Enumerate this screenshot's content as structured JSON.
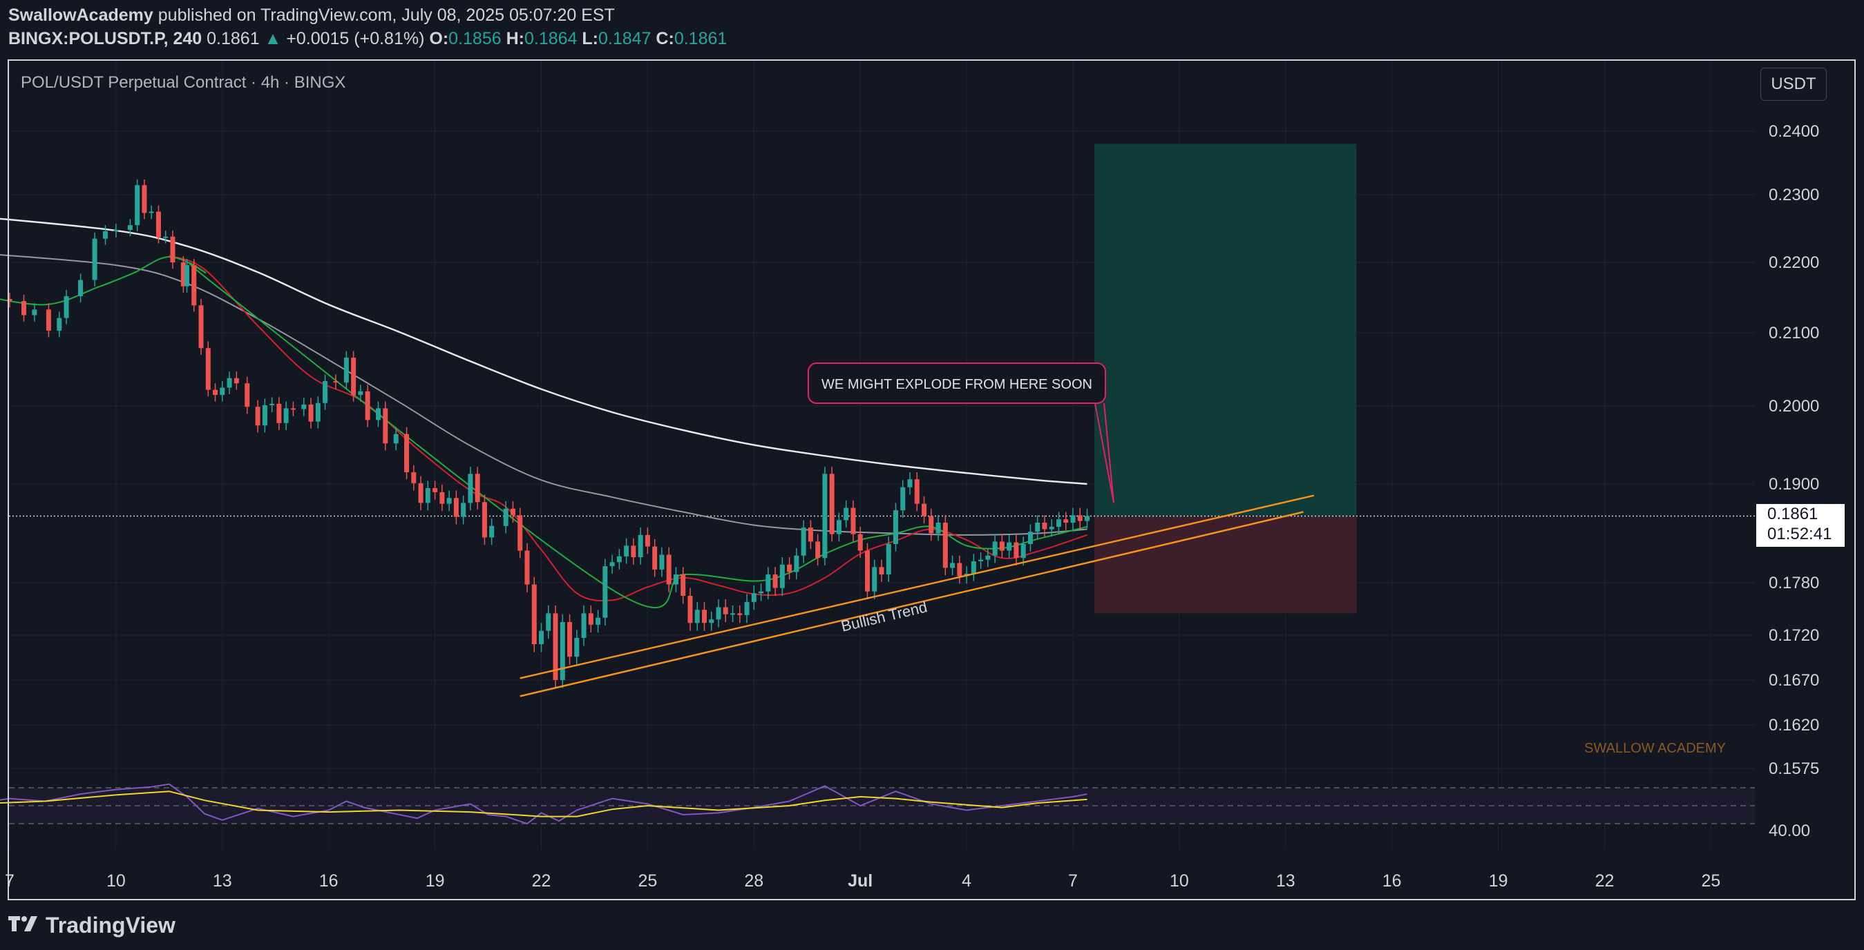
{
  "header": {
    "author": "SwallowAcademy",
    "published_text": "published on TradingView.com, July 08, 2025 05:07:20 EST",
    "symbol": "BINGX:POLUSDT.P, 240",
    "last": "0.1861",
    "change_arrow": "▲",
    "change": "+0.0015 (+0.81%)",
    "o_label": "O:",
    "o_value": "0.1856",
    "h_label": "H:",
    "h_value": "0.1864",
    "l_label": "L:",
    "l_value": "0.1847",
    "c_label": "C:",
    "c_value": "0.1861"
  },
  "chart_title": "POL/USDT Perpetual Contract · 4h · BINGX",
  "currency_button": "USDT",
  "price_tag": {
    "price": "0.1861",
    "countdown": "01:52:41"
  },
  "brand": "TradingView",
  "watermark": "SWALLOW ACADEMY",
  "colors": {
    "background": "#131722",
    "bull": "#26a69a",
    "bear": "#ef5350",
    "ma_white": "#e8e8e8",
    "ma_gray": "#9598a1",
    "ema_red": "#d3212c",
    "ema_green": "#1fae3c",
    "trend_orange": "#f7931a",
    "rsi": "#7e57c2",
    "rsi_ma": "#f2d62a",
    "annotation": "#e91e63"
  },
  "chart_data": {
    "type": "candlestick",
    "timeframe": "4h",
    "ylim": [
      0.1575,
      0.24
    ],
    "y_ticks": [
      "0.2400",
      "0.2300",
      "0.2200",
      "0.2100",
      "0.2000",
      "0.1900",
      "0.1780",
      "0.1720",
      "0.1670",
      "0.1620",
      "0.1575"
    ],
    "x_ticks": [
      "7",
      "10",
      "13",
      "16",
      "19",
      "22",
      "25",
      "28",
      "Jul",
      "4",
      "7",
      "10",
      "13",
      "16",
      "19",
      "22",
      "25"
    ],
    "x_start": "2025-06-07",
    "last_price": 0.1861,
    "close_path": [
      [
        6.0,
        0.2176
      ],
      [
        6.6,
        0.2148
      ],
      [
        7.0,
        0.2145
      ],
      [
        7.4,
        0.2125
      ],
      [
        7.7,
        0.2133
      ],
      [
        8.1,
        0.2103
      ],
      [
        8.4,
        0.2121
      ],
      [
        8.6,
        0.2152
      ],
      [
        9.0,
        0.2175
      ],
      [
        9.4,
        0.2235
      ],
      [
        9.7,
        0.2246
      ],
      [
        10.0,
        0.2248
      ],
      [
        10.4,
        0.2255
      ],
      [
        10.6,
        0.2315
      ],
      [
        10.8,
        0.2273
      ],
      [
        11.0,
        0.2275
      ],
      [
        11.2,
        0.2237
      ],
      [
        11.4,
        0.2238
      ],
      [
        11.6,
        0.22
      ],
      [
        11.9,
        0.2166
      ],
      [
        12.0,
        0.2196
      ],
      [
        12.2,
        0.2139
      ],
      [
        12.4,
        0.2079
      ],
      [
        12.6,
        0.2022
      ],
      [
        12.8,
        0.2015
      ],
      [
        13.0,
        0.2025
      ],
      [
        13.2,
        0.2038
      ],
      [
        13.4,
        0.2031
      ],
      [
        13.7,
        0.1999
      ],
      [
        14.0,
        0.1975
      ],
      [
        14.2,
        0.2001
      ],
      [
        14.4,
        0.2003
      ],
      [
        14.6,
        0.1978
      ],
      [
        14.8,
        0.1997
      ],
      [
        15.0,
        0.1996
      ],
      [
        15.3,
        0.2002
      ],
      [
        15.5,
        0.198
      ],
      [
        15.7,
        0.2004
      ],
      [
        15.9,
        0.2034
      ],
      [
        16.2,
        0.2032
      ],
      [
        16.5,
        0.2066
      ],
      [
        16.7,
        0.2015
      ],
      [
        16.9,
        0.202
      ],
      [
        17.1,
        0.1982
      ],
      [
        17.4,
        0.1997
      ],
      [
        17.6,
        0.1952
      ],
      [
        17.9,
        0.1964
      ],
      [
        18.2,
        0.1915
      ],
      [
        18.4,
        0.1901
      ],
      [
        18.6,
        0.1877
      ],
      [
        18.8,
        0.1895
      ],
      [
        19.0,
        0.189
      ],
      [
        19.2,
        0.1876
      ],
      [
        19.4,
        0.1883
      ],
      [
        19.6,
        0.186
      ],
      [
        19.8,
        0.1877
      ],
      [
        20.0,
        0.1913
      ],
      [
        20.2,
        0.1878
      ],
      [
        20.4,
        0.1835
      ],
      [
        20.6,
        0.1849
      ],
      [
        21.0,
        0.187
      ],
      [
        21.2,
        0.1862
      ],
      [
        21.4,
        0.1819
      ],
      [
        21.6,
        0.1778
      ],
      [
        21.8,
        0.171
      ],
      [
        22.0,
        0.1725
      ],
      [
        22.2,
        0.1745
      ],
      [
        22.4,
        0.167
      ],
      [
        22.6,
        0.1735
      ],
      [
        22.8,
        0.1696
      ],
      [
        23.0,
        0.1717
      ],
      [
        23.2,
        0.1745
      ],
      [
        23.4,
        0.1732
      ],
      [
        23.6,
        0.174
      ],
      [
        23.8,
        0.18
      ],
      [
        24.0,
        0.1805
      ],
      [
        24.2,
        0.1812
      ],
      [
        24.4,
        0.1825
      ],
      [
        24.6,
        0.1811
      ],
      [
        24.8,
        0.1838
      ],
      [
        25.0,
        0.1824
      ],
      [
        25.2,
        0.1796
      ],
      [
        25.4,
        0.1814
      ],
      [
        25.6,
        0.1778
      ],
      [
        25.8,
        0.179
      ],
      [
        26.0,
        0.1765
      ],
      [
        26.2,
        0.1734
      ],
      [
        26.4,
        0.1749
      ],
      [
        26.6,
        0.1734
      ],
      [
        26.8,
        0.1738
      ],
      [
        27.0,
        0.1752
      ],
      [
        27.2,
        0.1744
      ],
      [
        27.4,
        0.1745
      ],
      [
        27.6,
        0.1743
      ],
      [
        27.8,
        0.1758
      ],
      [
        28.0,
        0.1768
      ],
      [
        28.2,
        0.177
      ],
      [
        28.4,
        0.179
      ],
      [
        28.6,
        0.1774
      ],
      [
        28.8,
        0.1802
      ],
      [
        29.0,
        0.1793
      ],
      [
        29.2,
        0.1813
      ],
      [
        29.4,
        0.1847
      ],
      [
        29.6,
        0.183
      ],
      [
        29.8,
        0.181
      ],
      [
        30.0,
        0.1913
      ],
      [
        30.2,
        0.1839
      ],
      [
        30.4,
        0.1856
      ],
      [
        30.6,
        0.1871
      ],
      [
        30.8,
        0.1839
      ],
      [
        31.0,
        0.1819
      ],
      [
        31.2,
        0.177
      ],
      [
        31.4,
        0.1799
      ],
      [
        31.6,
        0.179
      ],
      [
        31.8,
        0.1827
      ],
      [
        32.0,
        0.1868
      ],
      [
        32.2,
        0.1896
      ],
      [
        32.4,
        0.1906
      ],
      [
        32.6,
        0.1876
      ],
      [
        32.8,
        0.1861
      ],
      [
        33.0,
        0.184
      ],
      [
        33.2,
        0.1853
      ],
      [
        33.4,
        0.1798
      ],
      [
        33.6,
        0.1804
      ],
      [
        33.8,
        0.1788
      ],
      [
        34.0,
        0.1791
      ],
      [
        34.2,
        0.1806
      ],
      [
        34.4,
        0.1808
      ],
      [
        34.6,
        0.1813
      ],
      [
        34.8,
        0.183
      ],
      [
        35.0,
        0.1819
      ],
      [
        35.2,
        0.1829
      ],
      [
        35.4,
        0.181
      ],
      [
        35.6,
        0.1827
      ],
      [
        35.8,
        0.1842
      ],
      [
        36.0,
        0.1853
      ],
      [
        36.2,
        0.1845
      ],
      [
        36.4,
        0.1848
      ],
      [
        36.6,
        0.1857
      ],
      [
        36.8,
        0.1853
      ],
      [
        37.0,
        0.1862
      ],
      [
        37.2,
        0.1855
      ],
      [
        37.4,
        0.1861
      ]
    ],
    "moving_averages": {
      "ma_white": [
        [
          6,
          0.2268
        ],
        [
          10,
          0.2247
        ],
        [
          12,
          0.2224
        ],
        [
          14,
          0.2186
        ],
        [
          16,
          0.214
        ],
        [
          18,
          0.2101
        ],
        [
          20,
          0.2061
        ],
        [
          22,
          0.2023
        ],
        [
          24,
          0.1992
        ],
        [
          26,
          0.1969
        ],
        [
          28,
          0.195
        ],
        [
          30,
          0.1936
        ],
        [
          32,
          0.1924
        ],
        [
          34,
          0.1914
        ],
        [
          36,
          0.1905
        ],
        [
          37.4,
          0.19
        ]
      ],
      "ma_gray": [
        [
          6,
          0.2214
        ],
        [
          10,
          0.2196
        ],
        [
          12,
          0.217
        ],
        [
          14,
          0.212
        ],
        [
          16,
          0.2063
        ],
        [
          18,
          0.2005
        ],
        [
          20,
          0.1949
        ],
        [
          22,
          0.1905
        ],
        [
          24,
          0.1884
        ],
        [
          26,
          0.1866
        ],
        [
          28,
          0.185
        ],
        [
          30,
          0.1843
        ],
        [
          32,
          0.184
        ],
        [
          34,
          0.1838
        ],
        [
          36,
          0.184
        ],
        [
          37.4,
          0.1845
        ]
      ],
      "ema_red": [
        [
          11.5,
          0.221
        ],
        [
          12.5,
          0.219
        ],
        [
          14,
          0.211
        ],
        [
          15.5,
          0.204
        ],
        [
          17,
          0.2005
        ],
        [
          18.5,
          0.1945
        ],
        [
          20,
          0.1892
        ],
        [
          21,
          0.1872
        ],
        [
          22,
          0.182
        ],
        [
          23,
          0.1768
        ],
        [
          24,
          0.176
        ],
        [
          25,
          0.1775
        ],
        [
          26,
          0.1786
        ],
        [
          27,
          0.1777
        ],
        [
          28,
          0.1767
        ],
        [
          29,
          0.1768
        ],
        [
          30,
          0.1786
        ],
        [
          31,
          0.1815
        ],
        [
          32,
          0.1831
        ],
        [
          33,
          0.1845
        ],
        [
          34,
          0.1832
        ],
        [
          35,
          0.181
        ],
        [
          36,
          0.1818
        ],
        [
          37.4,
          0.1838
        ]
      ],
      "ema_green": [
        [
          6,
          0.2155
        ],
        [
          8,
          0.214
        ],
        [
          9.5,
          0.2165
        ],
        [
          10.5,
          0.2185
        ],
        [
          11.5,
          0.2208
        ],
        [
          12.5,
          0.2186
        ],
        [
          13,
          0.216
        ],
        [
          24,
          0.1772
        ],
        [
          26,
          0.179
        ],
        [
          28,
          0.1782
        ],
        [
          29,
          0.1792
        ],
        [
          30,
          0.1815
        ],
        [
          31,
          0.1832
        ],
        [
          32,
          0.184
        ],
        [
          33,
          0.1848
        ],
        [
          34,
          0.1825
        ],
        [
          35,
          0.1822
        ],
        [
          36,
          0.1833
        ],
        [
          37.4,
          0.1848
        ]
      ]
    },
    "trendlines": [
      {
        "name": "Bullish Trend",
        "from": [
          21.4,
          0.1652
        ],
        "to": [
          43.5,
          0.1866
        ]
      },
      {
        "from": [
          21.4,
          0.1672
        ],
        "to": [
          43.8,
          0.1886
        ]
      }
    ],
    "trendline_label": "Bullish Trend",
    "position": {
      "entry": 0.1861,
      "target": 0.238,
      "stop": 0.1745,
      "from_day": 37.6,
      "to_day": 45.0
    },
    "annotation": "WE MIGHT EXPLODE FROM HERE SOON",
    "rsi": {
      "label": "40.00",
      "upper": 70,
      "middle": 50,
      "lower": 30,
      "values": [
        [
          6,
          52
        ],
        [
          7,
          58
        ],
        [
          8,
          55
        ],
        [
          9,
          63
        ],
        [
          10,
          68
        ],
        [
          11,
          71
        ],
        [
          11.5,
          74
        ],
        [
          12,
          60
        ],
        [
          12.5,
          41
        ],
        [
          13,
          34
        ],
        [
          14,
          47
        ],
        [
          15,
          38
        ],
        [
          16,
          45
        ],
        [
          16.5,
          55
        ],
        [
          17,
          48
        ],
        [
          18,
          40
        ],
        [
          18.5,
          36
        ],
        [
          19,
          45
        ],
        [
          20,
          52
        ],
        [
          20.5,
          40
        ],
        [
          21,
          38
        ],
        [
          21.6,
          30
        ],
        [
          22,
          42
        ],
        [
          22.5,
          33
        ],
        [
          23,
          45
        ],
        [
          24,
          58
        ],
        [
          25,
          52
        ],
        [
          26,
          40
        ],
        [
          27,
          42
        ],
        [
          28,
          48
        ],
        [
          29,
          55
        ],
        [
          30,
          72
        ],
        [
          31,
          50
        ],
        [
          32,
          66
        ],
        [
          33,
          52
        ],
        [
          34,
          45
        ],
        [
          35,
          50
        ],
        [
          36,
          55
        ],
        [
          37,
          60
        ],
        [
          37.4,
          63
        ]
      ],
      "ma": [
        [
          6,
          52
        ],
        [
          8,
          55
        ],
        [
          10,
          62
        ],
        [
          11.5,
          66
        ],
        [
          12.5,
          56
        ],
        [
          14,
          45
        ],
        [
          16,
          43
        ],
        [
          18,
          45
        ],
        [
          20,
          43
        ],
        [
          22,
          38
        ],
        [
          23,
          38
        ],
        [
          24,
          46
        ],
        [
          25,
          50
        ],
        [
          27,
          45
        ],
        [
          29,
          50
        ],
        [
          30,
          56
        ],
        [
          31,
          60
        ],
        [
          32,
          58
        ],
        [
          33,
          54
        ],
        [
          34,
          51
        ],
        [
          35,
          48
        ],
        [
          36,
          53
        ],
        [
          37.4,
          57
        ]
      ]
    }
  }
}
